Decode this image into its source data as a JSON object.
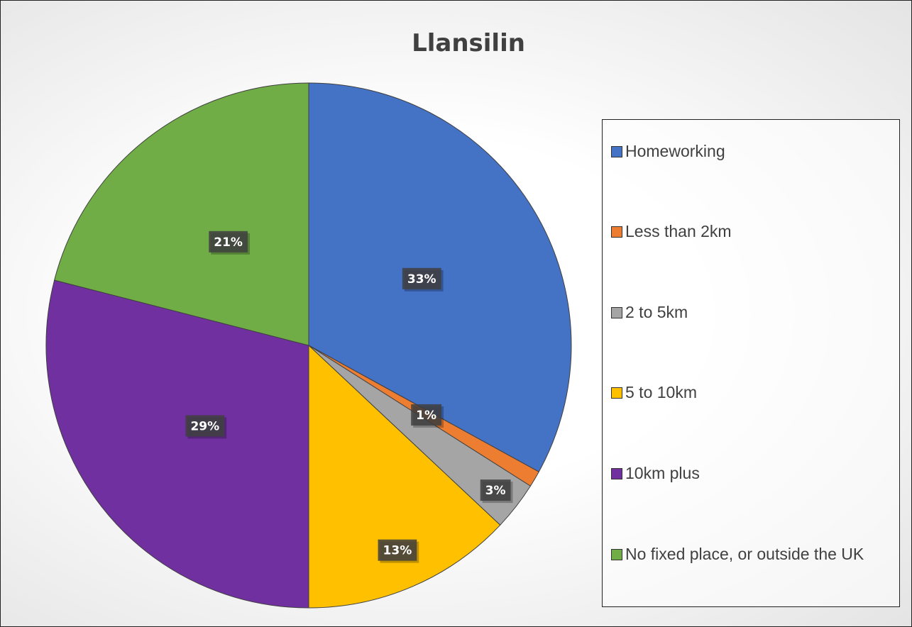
{
  "chart_data": {
    "type": "pie",
    "title": "Llansilin",
    "categories": [
      "Homeworking",
      "Less than 2km",
      "2 to 5km",
      "5 to 10km",
      "10km plus",
      "No fixed place, or outside the UK"
    ],
    "values": [
      33,
      1,
      3,
      13,
      29,
      21
    ],
    "value_labels": [
      "33%",
      "1%",
      "3%",
      "13%",
      "29%",
      "21%"
    ],
    "colors": [
      "#4472c4",
      "#ed7d31",
      "#a5a5a5",
      "#ffc000",
      "#7030a0",
      "#70ad47"
    ],
    "legend": "right"
  }
}
